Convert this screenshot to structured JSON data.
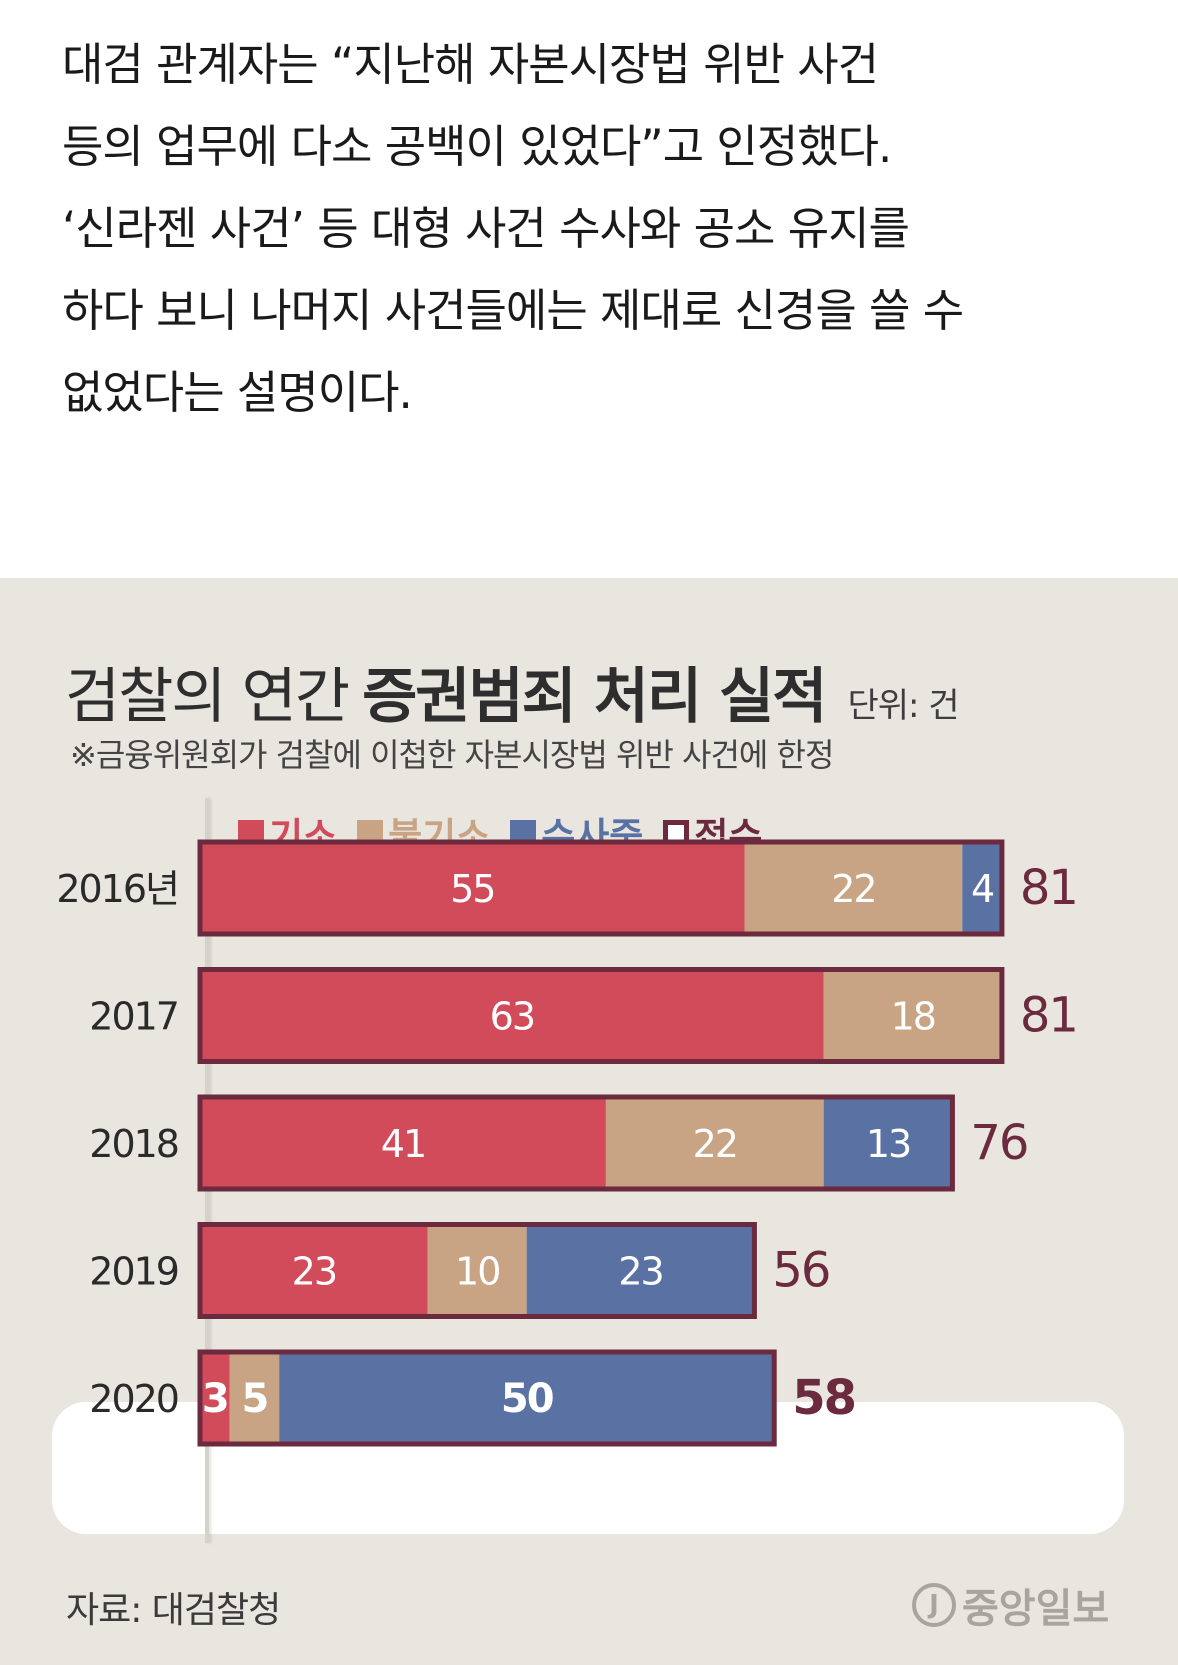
{
  "article": {
    "lines": [
      "대검 관계자는 “지난해 자본시장법 위반 사건",
      "등의 업무에 다소 공백이 있었다”고 인정했다.",
      "‘신라젠 사건’ 등 대형 사건 수사와 공소 유지를",
      "하다 보니 나머지 사건들에는 제대로 신경을 쓸 수",
      "없었다는 설명이다."
    ]
  },
  "graphic": {
    "title_light": "검찰의 연간",
    "title_bold": "증권범죄 처리 실적",
    "unit": "단위: 건",
    "note": "※금융위원회가 검찰에 이첩한 자본시장법 위반 사건에 한정",
    "source": "자료: 대검찰청",
    "logo_mark": "J",
    "logo_text": "중앙일보"
  },
  "colors": {
    "indicted": "#d24b5a",
    "not_indicted": "#c8a484",
    "investigating": "#5a72a3",
    "received": "#6b2a3e"
  },
  "chart_data": {
    "type": "bar",
    "orientation": "horizontal",
    "stacked": true,
    "categories": [
      "2016년",
      "2017",
      "2018",
      "2019",
      "2020"
    ],
    "series": [
      {
        "name": "기소",
        "values": [
          55,
          63,
          41,
          23,
          3
        ]
      },
      {
        "name": "불기소",
        "values": [
          22,
          18,
          22,
          10,
          5
        ]
      },
      {
        "name": "수사중",
        "values": [
          4,
          0,
          13,
          23,
          50
        ]
      }
    ],
    "totals_name": "접수",
    "totals": [
      81,
      81,
      76,
      56,
      58
    ],
    "highlight_category": "2020",
    "legend": [
      "기소",
      "불기소",
      "수사중",
      "접수"
    ],
    "legend_position": "top"
  }
}
